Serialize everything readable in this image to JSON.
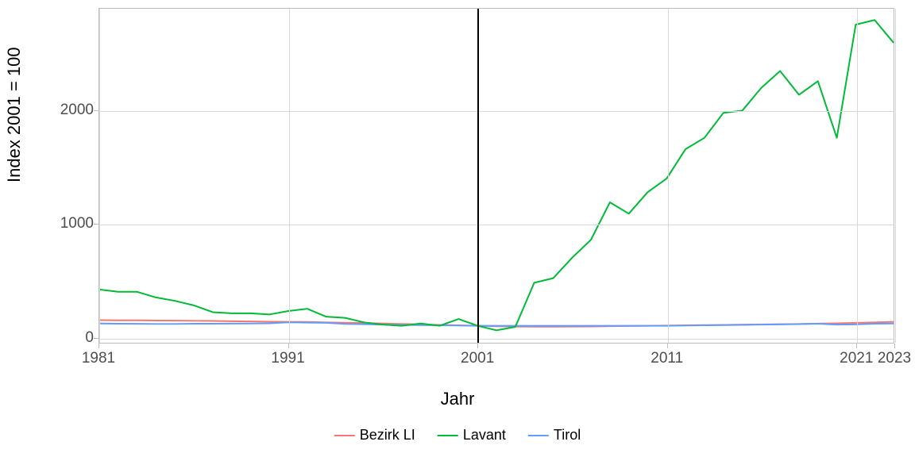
{
  "chart": {
    "type": "line",
    "ylabel": "Index 2001 = 100",
    "xlabel": "Jahr",
    "label_fontsize": 22,
    "tick_fontsize": 19,
    "background_color": "#ffffff",
    "grid_color": "#d9d9d9",
    "border_color": "#bdbdbd",
    "xlim": [
      1981,
      2023
    ],
    "ylim": [
      -50,
      2900
    ],
    "ytick_values": [
      0,
      1000,
      2000
    ],
    "xtick_values": [
      1981,
      1991,
      2001,
      2011,
      2021,
      2023
    ],
    "reference_line_x": 2001,
    "reference_line_color": "#000000",
    "line_width": 2,
    "legend": {
      "position": "bottom",
      "items": [
        {
          "label": "Bezirk LI",
          "color": "#f8766d"
        },
        {
          "label": "Lavant",
          "color": "#00ba38"
        },
        {
          "label": "Tirol",
          "color": "#619cff"
        }
      ]
    },
    "series": {
      "bezirk_li": {
        "color": "#f8766d",
        "years": [
          1981,
          1982,
          1983,
          1984,
          1985,
          1986,
          1987,
          1988,
          1989,
          1990,
          1991,
          1992,
          1993,
          1994,
          1995,
          1996,
          1997,
          1998,
          1999,
          2000,
          2001,
          2002,
          2003,
          2004,
          2005,
          2006,
          2007,
          2008,
          2009,
          2010,
          2011,
          2012,
          2013,
          2014,
          2015,
          2016,
          2017,
          2018,
          2019,
          2020,
          2021,
          2022,
          2023
        ],
        "values": [
          150,
          148,
          148,
          146,
          145,
          144,
          143,
          140,
          138,
          136,
          135,
          134,
          130,
          127,
          124,
          120,
          116,
          112,
          108,
          104,
          100,
          95,
          93,
          92,
          92,
          93,
          94,
          96,
          98,
          100,
          102,
          104,
          106,
          108,
          110,
          112,
          114,
          116,
          119,
          122,
          126,
          130,
          135
        ]
      },
      "lavant": {
        "color": "#00ba38",
        "years": [
          1981,
          1982,
          1983,
          1984,
          1985,
          1986,
          1987,
          1988,
          1989,
          1990,
          1991,
          1992,
          1993,
          1994,
          1995,
          1996,
          1997,
          1998,
          1999,
          2000,
          2001,
          2002,
          2003,
          2004,
          2005,
          2006,
          2007,
          2008,
          2009,
          2010,
          2011,
          2012,
          2013,
          2014,
          2015,
          2016,
          2017,
          2018,
          2019,
          2020,
          2021,
          2022,
          2023
        ],
        "values": [
          420,
          400,
          400,
          350,
          320,
          280,
          220,
          210,
          210,
          200,
          230,
          250,
          180,
          170,
          130,
          110,
          100,
          120,
          100,
          160,
          100,
          60,
          90,
          480,
          520,
          700,
          860,
          1190,
          1090,
          1280,
          1400,
          1660,
          1760,
          1980,
          2000,
          2200,
          2350,
          2140,
          2260,
          1760,
          2760,
          2800,
          2600
        ]
      },
      "tirol": {
        "color": "#619cff",
        "years": [
          1981,
          1982,
          1983,
          1984,
          1985,
          1986,
          1987,
          1988,
          1989,
          1990,
          1991,
          1992,
          1993,
          1994,
          1995,
          1996,
          1997,
          1998,
          1999,
          2000,
          2001,
          2002,
          2003,
          2004,
          2005,
          2006,
          2007,
          2008,
          2009,
          2010,
          2011,
          2012,
          2013,
          2014,
          2015,
          2016,
          2017,
          2018,
          2019,
          2020,
          2021,
          2022,
          2023
        ],
        "values": [
          120,
          118,
          117,
          116,
          116,
          118,
          118,
          119,
          120,
          122,
          130,
          128,
          126,
          116,
          114,
          110,
          108,
          106,
          104,
          102,
          100,
          100,
          100,
          100,
          100,
          100,
          100,
          100,
          100,
          100,
          100,
          102,
          104,
          106,
          108,
          110,
          112,
          115,
          118,
          110,
          112,
          118,
          120
        ]
      }
    }
  }
}
